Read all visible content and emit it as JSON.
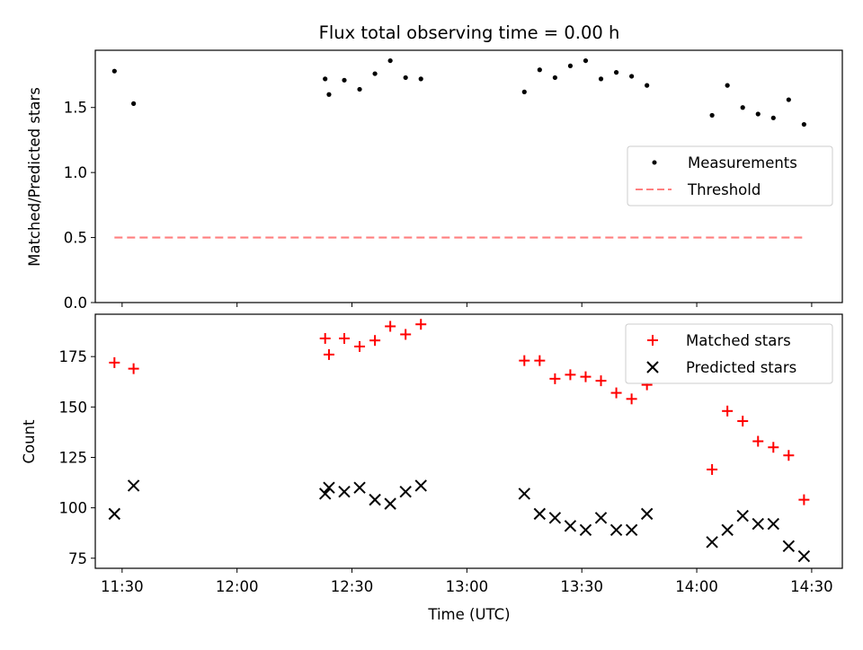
{
  "chart_data": [
    {
      "type": "scatter",
      "title": "Flux total observing time = 0.00 h",
      "xlabel": "",
      "ylabel": "Matched/Predicted stars",
      "xlim": [
        "11:23",
        "14:38"
      ],
      "ylim": [
        0,
        1.94
      ],
      "yticks": [
        "0.0",
        "0.5",
        "1.0",
        "1.5"
      ],
      "grid": false,
      "legend_position": "center-right",
      "series": [
        {
          "name": "Measurements",
          "kind": "point",
          "color": "#000000",
          "x": [
            "11:28",
            "11:33",
            "12:23",
            "12:24",
            "12:28",
            "12:32",
            "12:36",
            "12:40",
            "12:44",
            "12:48",
            "13:15",
            "13:19",
            "13:23",
            "13:27",
            "13:31",
            "13:35",
            "13:39",
            "13:43",
            "13:47",
            "14:04",
            "14:08",
            "14:12",
            "14:16",
            "14:20",
            "14:24",
            "14:28"
          ],
          "y": [
            1.78,
            1.53,
            1.72,
            1.6,
            1.71,
            1.64,
            1.76,
            1.86,
            1.73,
            1.72,
            1.62,
            1.79,
            1.73,
            1.82,
            1.86,
            1.72,
            1.77,
            1.74,
            1.67,
            1.44,
            1.67,
            1.5,
            1.45,
            1.42,
            1.56,
            1.37
          ]
        },
        {
          "name": "Threshold",
          "kind": "dashed-line",
          "color": "#ff7f7f",
          "x": [
            "11:28",
            "14:28"
          ],
          "y": [
            0.5,
            0.5
          ]
        }
      ]
    },
    {
      "type": "scatter",
      "title": "",
      "xlabel": "Time (UTC)",
      "ylabel": "Count",
      "xlim": [
        "11:23",
        "14:38"
      ],
      "ylim": [
        70,
        196
      ],
      "yticks": [
        "75",
        "100",
        "125",
        "150",
        "175"
      ],
      "xticks": [
        "11:30",
        "12:00",
        "12:30",
        "13:00",
        "13:30",
        "14:00",
        "14:30"
      ],
      "grid": false,
      "legend_position": "top-right",
      "series": [
        {
          "name": "Matched stars",
          "kind": "plus",
          "color": "#ff0000",
          "x": [
            "11:28",
            "11:33",
            "12:23",
            "12:24",
            "12:28",
            "12:32",
            "12:36",
            "12:40",
            "12:44",
            "12:48",
            "13:15",
            "13:19",
            "13:23",
            "13:27",
            "13:31",
            "13:35",
            "13:39",
            "13:43",
            "13:47",
            "14:04",
            "14:08",
            "14:12",
            "14:16",
            "14:20",
            "14:24",
            "14:28"
          ],
          "y": [
            172,
            169,
            184,
            176,
            184,
            180,
            183,
            190,
            186,
            191,
            173,
            173,
            164,
            166,
            165,
            163,
            157,
            154,
            161,
            119,
            148,
            143,
            133,
            130,
            126,
            104
          ]
        },
        {
          "name": "Predicted stars",
          "kind": "cross",
          "color": "#000000",
          "x": [
            "11:28",
            "11:33",
            "12:23",
            "12:24",
            "12:28",
            "12:32",
            "12:36",
            "12:40",
            "12:44",
            "12:48",
            "13:15",
            "13:19",
            "13:23",
            "13:27",
            "13:31",
            "13:35",
            "13:39",
            "13:43",
            "13:47",
            "14:04",
            "14:08",
            "14:12",
            "14:16",
            "14:20",
            "14:24",
            "14:28"
          ],
          "y": [
            97,
            111,
            107,
            110,
            108,
            110,
            104,
            102,
            108,
            111,
            107,
            97,
            95,
            91,
            89,
            95,
            89,
            89,
            97,
            83,
            89,
            96,
            92,
            92,
            81,
            76
          ]
        }
      ]
    }
  ]
}
